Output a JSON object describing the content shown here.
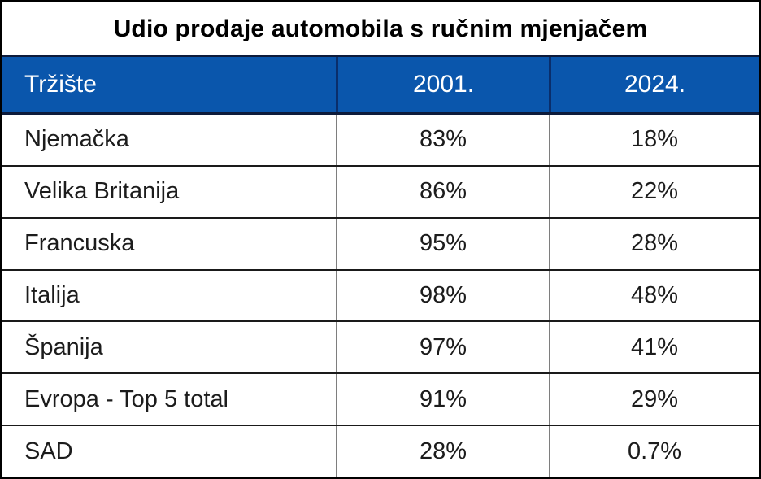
{
  "title": "Udio prodaje automobila s ručnim mjenjačem",
  "table": {
    "columns": [
      "Tržište",
      "2001.",
      "2024."
    ],
    "rows": [
      {
        "market": "Njemačka",
        "v2001": "83%",
        "v2024": "18%"
      },
      {
        "market": "Velika Britanija",
        "v2001": "86%",
        "v2024": "22%"
      },
      {
        "market": "Francuska",
        "v2001": "95%",
        "v2024": "28%"
      },
      {
        "market": "Italija",
        "v2001": "98%",
        "v2024": "48%"
      },
      {
        "market": "Španija",
        "v2001": "97%",
        "v2024": "41%"
      },
      {
        "market": "Evropa - Top 5 total",
        "v2001": "91%",
        "v2024": "29%"
      },
      {
        "market": "SAD",
        "v2001": "28%",
        "v2024": "0.7%"
      }
    ]
  },
  "colors": {
    "header_bg": "#0A56AC",
    "header_text": "#FFFFFF",
    "header_divider": "#0A2E6B",
    "header_edge_line": "#0D1B3B",
    "body_divider": "#7E7E7E",
    "row_separator": "#1A1A1A",
    "outer_border": "#000000",
    "body_text": "#1C1C1C"
  },
  "chart_data": {
    "type": "table",
    "title": "Udio prodaje automobila s ručnim mjenjačem",
    "columns": [
      "Tržište",
      "2001.",
      "2024."
    ],
    "categories": [
      "Njemačka",
      "Velika Britanija",
      "Francuska",
      "Italija",
      "Španija",
      "Evropa - Top 5 total",
      "SAD"
    ],
    "series": [
      {
        "name": "2001.",
        "values": [
          83,
          86,
          95,
          98,
          97,
          91,
          28
        ],
        "unit": "%"
      },
      {
        "name": "2024.",
        "values": [
          18,
          22,
          28,
          48,
          41,
          29,
          0.7
        ],
        "unit": "%"
      }
    ]
  }
}
